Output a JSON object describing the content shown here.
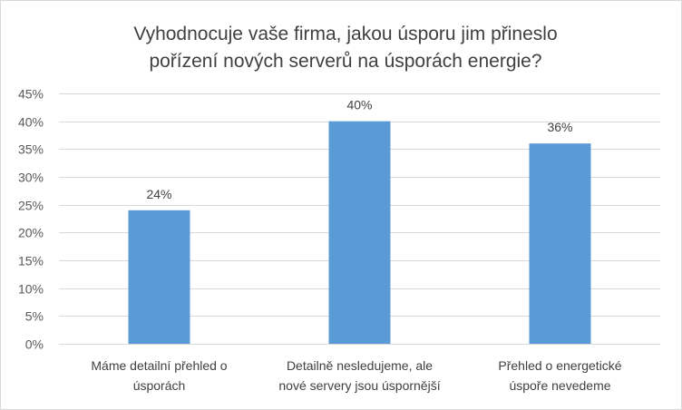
{
  "chart_data": {
    "type": "bar",
    "title_lines": [
      "Vyhodnocuje vaše firma, jakou úsporu jim přineslo",
      "pořízení nových serverů na úsporách energie?"
    ],
    "categories": [
      [
        "Máme detailní přehled o",
        "úsporách"
      ],
      [
        "Detailně nesledujeme, ale",
        "nové servery jsou úspornější"
      ],
      [
        "Přehled o energetické",
        "úspoře nevedeme"
      ]
    ],
    "values": [
      24,
      40,
      36
    ],
    "data_labels": [
      "24%",
      "40%",
      "36%"
    ],
    "ylim": [
      0,
      45
    ],
    "yticks": [
      0,
      5,
      10,
      15,
      20,
      25,
      30,
      35,
      40,
      45
    ],
    "ytick_labels": [
      "0%",
      "5%",
      "10%",
      "15%",
      "20%",
      "25%",
      "30%",
      "35%",
      "40%",
      "45%"
    ],
    "grid": true,
    "bar_color": "#5b9bd5",
    "grid_color": "#d9d9d9"
  }
}
